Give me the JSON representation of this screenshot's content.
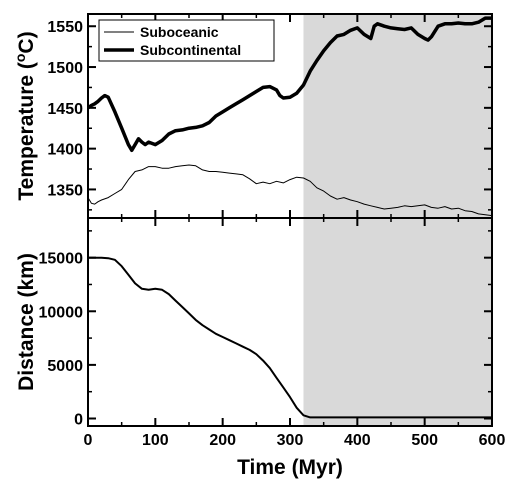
{
  "colors": {
    "line": "#000000",
    "shade": "#d9d9d9",
    "frame": "#000000",
    "background": "#ffffff"
  },
  "chart_data": [
    {
      "type": "line",
      "panel": "top",
      "xlabel": "",
      "ylabel": "Temperature (°C)",
      "ylabel_parts": {
        "before": "Temperature (",
        "sup": "o",
        "after": "C)"
      },
      "xlim": [
        0,
        600
      ],
      "ylim": [
        1315,
        1565
      ],
      "xticks": [
        0,
        100,
        200,
        300,
        400,
        500,
        600
      ],
      "yticks": [
        1350,
        1400,
        1450,
        1500,
        1550
      ],
      "shaded_region_x": [
        320,
        600
      ],
      "legend": {
        "position": "top-left"
      },
      "series": [
        {
          "name": "Suboceanic",
          "style": "thin",
          "x": [
            0,
            5,
            10,
            15,
            20,
            30,
            40,
            50,
            60,
            70,
            80,
            90,
            100,
            110,
            120,
            130,
            140,
            150,
            160,
            170,
            180,
            190,
            200,
            210,
            220,
            230,
            240,
            250,
            260,
            270,
            280,
            290,
            300,
            310,
            320,
            330,
            340,
            350,
            360,
            370,
            380,
            390,
            400,
            410,
            420,
            430,
            440,
            450,
            460,
            470,
            480,
            490,
            500,
            510,
            520,
            530,
            540,
            550,
            560,
            570,
            580,
            590,
            600
          ],
          "y": [
            1340,
            1333,
            1332,
            1335,
            1337,
            1340,
            1345,
            1350,
            1362,
            1372,
            1374,
            1378,
            1378,
            1376,
            1376,
            1378,
            1379,
            1380,
            1379,
            1374,
            1372,
            1372,
            1371,
            1370,
            1369,
            1368,
            1363,
            1357,
            1359,
            1357,
            1360,
            1358,
            1362,
            1365,
            1364,
            1360,
            1352,
            1348,
            1342,
            1338,
            1340,
            1337,
            1335,
            1332,
            1330,
            1328,
            1326,
            1327,
            1328,
            1330,
            1329,
            1330,
            1331,
            1328,
            1327,
            1329,
            1326,
            1327,
            1324,
            1323,
            1320,
            1319,
            1318
          ]
        },
        {
          "name": "Subcontinental",
          "style": "thick",
          "x": [
            0,
            5,
            10,
            15,
            20,
            25,
            30,
            40,
            50,
            60,
            65,
            70,
            75,
            80,
            85,
            90,
            100,
            110,
            120,
            130,
            140,
            150,
            160,
            170,
            180,
            190,
            200,
            210,
            220,
            230,
            240,
            250,
            260,
            270,
            280,
            285,
            290,
            300,
            310,
            320,
            330,
            340,
            350,
            360,
            370,
            380,
            390,
            400,
            410,
            420,
            425,
            430,
            440,
            450,
            460,
            470,
            480,
            490,
            500,
            505,
            510,
            520,
            530,
            540,
            550,
            560,
            570,
            580,
            590,
            600
          ],
          "y": [
            1450,
            1453,
            1455,
            1458,
            1462,
            1465,
            1463,
            1445,
            1425,
            1405,
            1398,
            1405,
            1412,
            1408,
            1405,
            1408,
            1405,
            1410,
            1418,
            1422,
            1423,
            1425,
            1426,
            1428,
            1432,
            1440,
            1445,
            1450,
            1455,
            1460,
            1465,
            1470,
            1475,
            1476,
            1472,
            1465,
            1462,
            1463,
            1468,
            1478,
            1495,
            1508,
            1520,
            1530,
            1538,
            1540,
            1545,
            1548,
            1540,
            1535,
            1550,
            1553,
            1550,
            1548,
            1547,
            1546,
            1548,
            1540,
            1535,
            1533,
            1537,
            1550,
            1553,
            1553,
            1554,
            1553,
            1553,
            1555,
            1560,
            1560
          ]
        }
      ]
    },
    {
      "type": "line",
      "panel": "bottom",
      "xlabel": "Time (Myr)",
      "ylabel": "Distance (km)",
      "xlim": [
        0,
        600
      ],
      "ylim": [
        -700,
        18700
      ],
      "xticks": [
        0,
        100,
        200,
        300,
        400,
        500,
        600
      ],
      "yticks": [
        0,
        5000,
        10000,
        15000
      ],
      "shaded_region_x": [
        320,
        600
      ],
      "series": [
        {
          "name": "",
          "style": "medium",
          "x": [
            0,
            10,
            20,
            30,
            40,
            50,
            60,
            70,
            80,
            90,
            100,
            110,
            120,
            130,
            140,
            150,
            160,
            170,
            180,
            190,
            200,
            210,
            220,
            230,
            240,
            250,
            260,
            270,
            280,
            290,
            300,
            310,
            320,
            330,
            340,
            350,
            400,
            450,
            500,
            550,
            600
          ],
          "y": [
            15000,
            15000,
            15000,
            14950,
            14800,
            14200,
            13400,
            12600,
            12100,
            12000,
            12100,
            12000,
            11600,
            11000,
            10400,
            9800,
            9200,
            8700,
            8300,
            7900,
            7600,
            7300,
            7000,
            6700,
            6400,
            6000,
            5400,
            4700,
            3800,
            2900,
            2000,
            1000,
            300,
            100,
            100,
            100,
            100,
            100,
            100,
            100,
            100
          ]
        }
      ]
    }
  ]
}
